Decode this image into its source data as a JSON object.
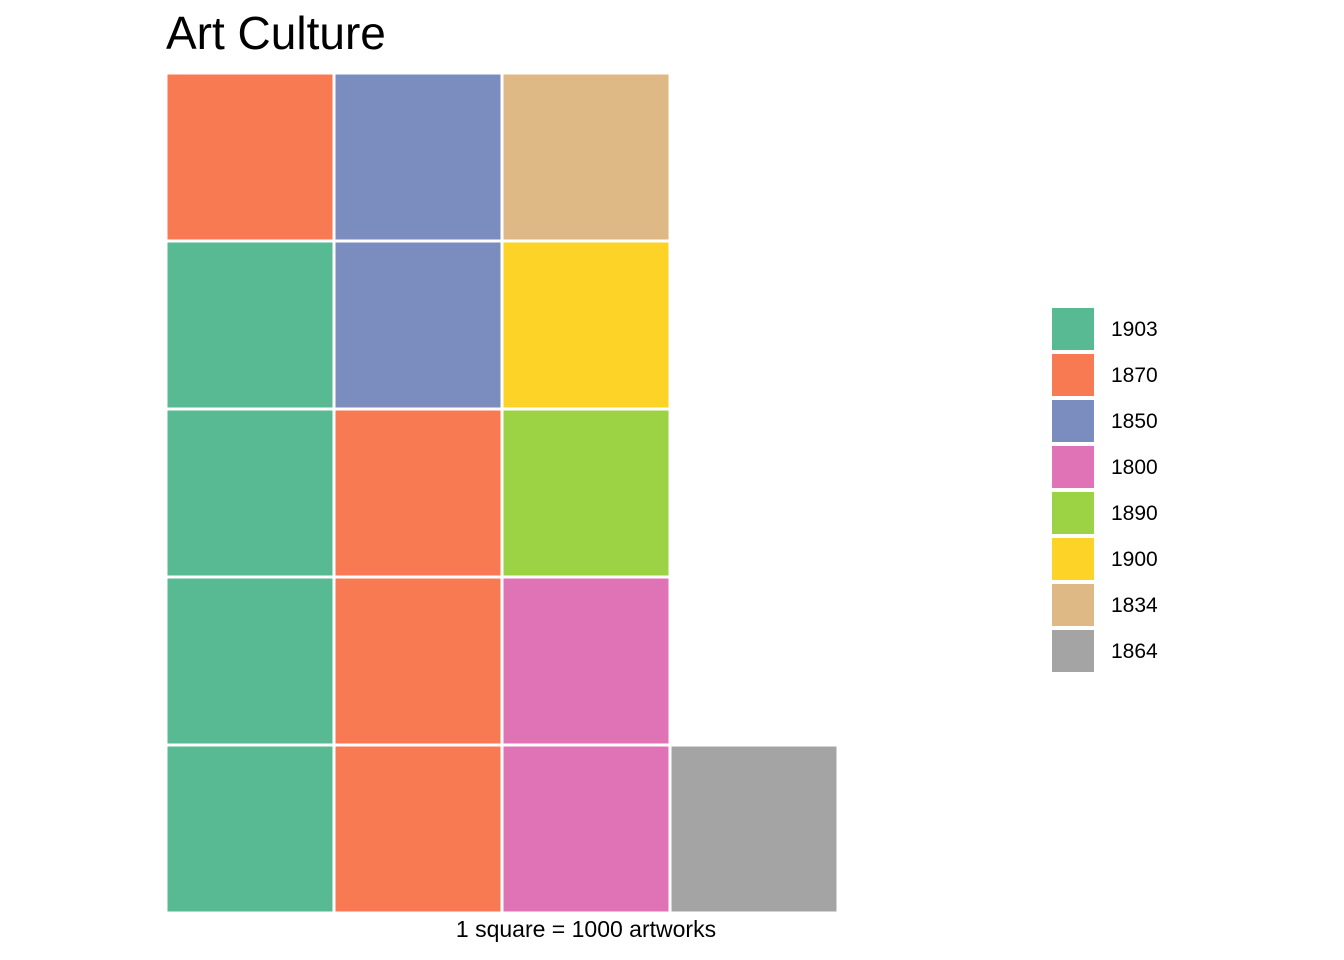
{
  "chart_data": {
    "type": "waffle",
    "title": "Art Culture",
    "caption": "1 square = 1000 artworks",
    "unit": 1000,
    "rows": 5,
    "fill_order": "column-major, bottom-to-top",
    "categories": [
      "1903",
      "1870",
      "1850",
      "1800",
      "1890",
      "1900",
      "1834",
      "1864"
    ],
    "colors": [
      "#58ba93",
      "#f87a53",
      "#7b8dbe",
      "#e073b6",
      "#9bd345",
      "#fed328",
      "#deb885",
      "#a4a4a4"
    ],
    "values": [
      4,
      4,
      2,
      2,
      1,
      1,
      1,
      1
    ],
    "cells": [
      "1903",
      "1903",
      "1903",
      "1903",
      "1870",
      "1870",
      "1870",
      "1870",
      "1850",
      "1850",
      "1800",
      "1800",
      "1890",
      "1900",
      "1834",
      "1864"
    ],
    "legend_position": "right"
  }
}
